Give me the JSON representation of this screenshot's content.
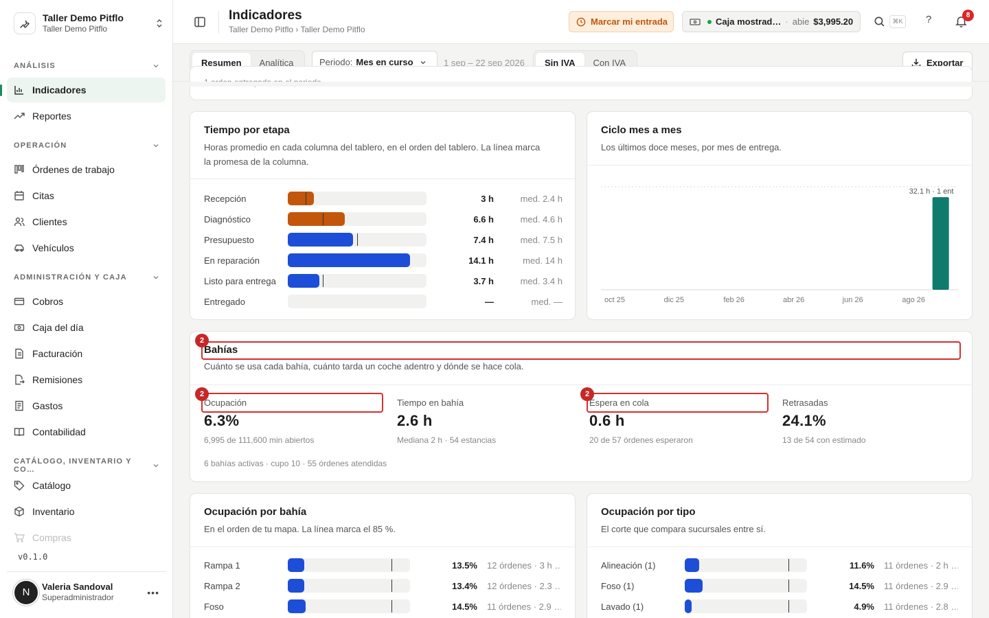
{
  "workspace": {
    "name": "Taller Demo Pitflo",
    "sub": "Taller Demo Pitflo"
  },
  "sidebar": {
    "sections": [
      {
        "label": "ANÁLISIS"
      },
      {
        "label": "OPERACIÓN"
      },
      {
        "label": "ADMINISTRACIÓN Y CAJA"
      },
      {
        "label": "CATÁLOGO, INVENTARIO Y CO…"
      }
    ],
    "items": [
      {
        "label": "Indicadores",
        "icon": "chart-bar-icon"
      },
      {
        "label": "Reportes",
        "icon": "trend-icon"
      },
      {
        "label": "Órdenes de trabajo",
        "icon": "kanban-icon"
      },
      {
        "label": "Citas",
        "icon": "calendar-icon"
      },
      {
        "label": "Clientes",
        "icon": "users-icon"
      },
      {
        "label": "Vehículos",
        "icon": "car-icon"
      },
      {
        "label": "Cobros",
        "icon": "card-icon"
      },
      {
        "label": "Caja del día",
        "icon": "cash-icon"
      },
      {
        "label": "Facturación",
        "icon": "document-icon"
      },
      {
        "label": "Remisiones",
        "icon": "file-export-icon"
      },
      {
        "label": "Gastos",
        "icon": "receipt-icon"
      },
      {
        "label": "Contabilidad",
        "icon": "book-icon"
      },
      {
        "label": "Catálogo",
        "icon": "tag-icon"
      },
      {
        "label": "Inventario",
        "icon": "box-icon"
      },
      {
        "label": "Compras",
        "icon": "cart-icon"
      }
    ],
    "version": "v0.1.0",
    "user": {
      "initial": "N",
      "name": "Valeria Sandoval",
      "role": "Superadministrador"
    }
  },
  "header": {
    "title": "Indicadores",
    "breadcrumb": "Taller Demo Pitflo › Taller Demo Pitflo",
    "entry_button": "Marcar mi entrada",
    "caja": {
      "name": "Caja mostrad…",
      "sep": "·",
      "status": "abie",
      "amount": "$3,995.20"
    },
    "kbd": "⌘K",
    "help": "?",
    "notifications": "8"
  },
  "toolbar": {
    "tabs": [
      "Resumen",
      "Analítica"
    ],
    "period_label": "Periodo:",
    "period_value": "Mes en curso",
    "range": "1 sep – 22 sep 2026",
    "tax_tabs": [
      "Sin IVA",
      "Con IVA"
    ],
    "export": "Exportar"
  },
  "top_partial": "1 orden entregada en el periodo",
  "stages": {
    "title": "Tiempo por etapa",
    "desc_1": "Horas promedio en cada columna del tablero, en el orden del tablero. La línea marca",
    "desc_2": "la promesa de la columna.",
    "rows": [
      {
        "label": "Recepción",
        "value": "3 h",
        "median": "med. 2.4 h",
        "fill": 0.19,
        "promise": 0.13,
        "color": "#c2570c"
      },
      {
        "label": "Diagnóstico",
        "value": "6.6 h",
        "median": "med. 4.6 h",
        "fill": 0.41,
        "promise": 0.25,
        "color": "#c2570c"
      },
      {
        "label": "Presupuesto",
        "value": "7.4 h",
        "median": "med. 7.5 h",
        "fill": 0.47,
        "promise": 0.5,
        "color": "#1d4ed8"
      },
      {
        "label": "En reparación",
        "value": "14.1 h",
        "median": "med. 14 h",
        "fill": 0.88,
        "promise": null,
        "color": "#1d4ed8"
      },
      {
        "label": "Listo para entrega",
        "value": "3.7 h",
        "median": "med. 3.4 h",
        "fill": 0.23,
        "promise": 0.25,
        "color": "#1d4ed8"
      },
      {
        "label": "Entregado",
        "value": "—",
        "median": "med. —",
        "fill": 0,
        "promise": null,
        "color": "#1d4ed8"
      }
    ]
  },
  "cycle": {
    "title": "Ciclo mes a mes",
    "desc": "Los últimos doce meses, por mes de entrega.",
    "bar_label": "32.1 h · 1 ent",
    "bar_color": "#0f7b6c"
  },
  "chart_data": {
    "type": "bar",
    "categories": [
      "oct 25",
      "nov 25",
      "dic 25",
      "ene 26",
      "feb 26",
      "mar 26",
      "abr 26",
      "may 26",
      "jun 26",
      "jul 26",
      "ago 26",
      "sep 26"
    ],
    "values": [
      0,
      0,
      0,
      0,
      0,
      0,
      0,
      0,
      0,
      0,
      0,
      32.1
    ],
    "x_tick_labels": [
      "oct 25",
      "dic 25",
      "feb 26",
      "abr 26",
      "jun 26",
      "ago 26"
    ],
    "ylabel": "",
    "ylim": [
      0,
      35
    ],
    "grid": false
  },
  "bays": {
    "title": "Bahías",
    "desc": "Cuánto se usa cada bahía, cuánto tarda un coche adentro y dónde se hace cola.",
    "badge": "2",
    "kpis": [
      {
        "label": "Ocupación",
        "value": "6.3%",
        "sub": "6,995 de 111,600 min abiertos"
      },
      {
        "label": "Tiempo en bahía",
        "value": "2.6 h",
        "sub": "Mediana 2 h · 54 estancias"
      },
      {
        "label": "Espera en cola",
        "value": "0.6 h",
        "sub": "20 de 57 órdenes esperaron"
      },
      {
        "label": "Retrasadas",
        "value": "24.1%",
        "sub": "13 de 54 con estimado"
      }
    ],
    "footer": "6 bahías activas · cupo 10 · 55 órdenes atendidas"
  },
  "bay_occ": {
    "title": "Ocupación por bahía",
    "desc": "En el orden de tu mapa. La línea marca el 85 %.",
    "rows": [
      {
        "label": "Rampa 1",
        "pct": "13.5%",
        "info": "12 órdenes · 3 h …",
        "fill": 0.135
      },
      {
        "label": "Rampa 2",
        "pct": "13.4%",
        "info": "12 órdenes · 2.3 …",
        "fill": 0.134
      },
      {
        "label": "Foso",
        "pct": "14.5%",
        "info": "11 órdenes · 2.9 …",
        "fill": 0.145
      }
    ]
  },
  "type_occ": {
    "title": "Ocupación por tipo",
    "desc": "El corte que compara sucursales entre sí.",
    "rows": [
      {
        "label": "Alineación (1)",
        "pct": "11.6%",
        "info": "11 órdenes · 2 h …",
        "fill": 0.116
      },
      {
        "label": "Foso (1)",
        "pct": "14.5%",
        "info": "11 órdenes · 2.9 …",
        "fill": 0.145
      },
      {
        "label": "Lavado (1)",
        "pct": "4.9%",
        "info": "11 órdenes · 2.8 …",
        "fill": 0.049
      }
    ]
  },
  "colors": {
    "accent": "#1a8a5c",
    "blue": "#1d4ed8",
    "orange": "#c2570c",
    "teal": "#0f7b6c",
    "red": "#d32f2f"
  }
}
